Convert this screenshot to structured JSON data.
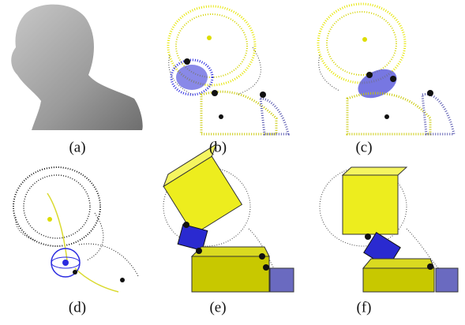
{
  "figure": {
    "panels": [
      {
        "caption": "(a)"
      },
      {
        "caption": "(b)"
      },
      {
        "caption": "(c)"
      },
      {
        "caption": "(d)"
      },
      {
        "caption": "(e)"
      },
      {
        "caption": "(f)"
      }
    ]
  }
}
